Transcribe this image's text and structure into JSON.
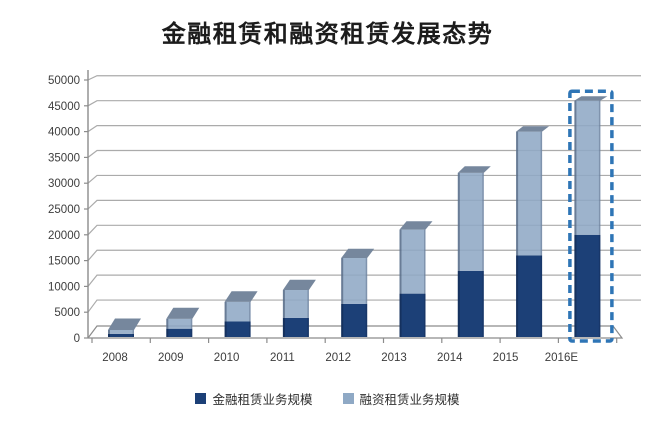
{
  "title": "金融租赁和融资租赁发展态势",
  "chart_data": {
    "type": "bar",
    "stacked": true,
    "title": "金融租赁和融资租赁发展态势",
    "categories": [
      "2008",
      "2009",
      "2010",
      "2011",
      "2012",
      "2013",
      "2014",
      "2015",
      "2016E"
    ],
    "series": [
      {
        "name": "金融租赁业务规模",
        "color": "#1C4077",
        "values": [
          800,
          1800,
          3200,
          3900,
          6600,
          8600,
          13000,
          16000,
          20000
        ]
      },
      {
        "name": "融资租赁业务规模",
        "color": "#8FA9C5",
        "values": [
          750,
          1900,
          3800,
          5400,
          8900,
          12400,
          19000,
          24000,
          26000
        ]
      }
    ],
    "totals": [
      1550,
      3700,
      7000,
      9300,
      15500,
      21000,
      32000,
      40000,
      46000
    ],
    "xlabel": "",
    "ylabel": "",
    "ylim": [
      0,
      50000
    ],
    "ytick_step": 5000,
    "grid": true,
    "legend_position": "bottom",
    "highlighted_category": "2016E",
    "highlight_style": "dashed-outline",
    "highlight_color": "#2E75B6",
    "colors": {
      "gridline": "#ABABAB",
      "axis": "#8C8C8C",
      "tick_label": "#3D3D3D",
      "cap": "#76879D",
      "title_text": "#1C1C1C"
    }
  }
}
